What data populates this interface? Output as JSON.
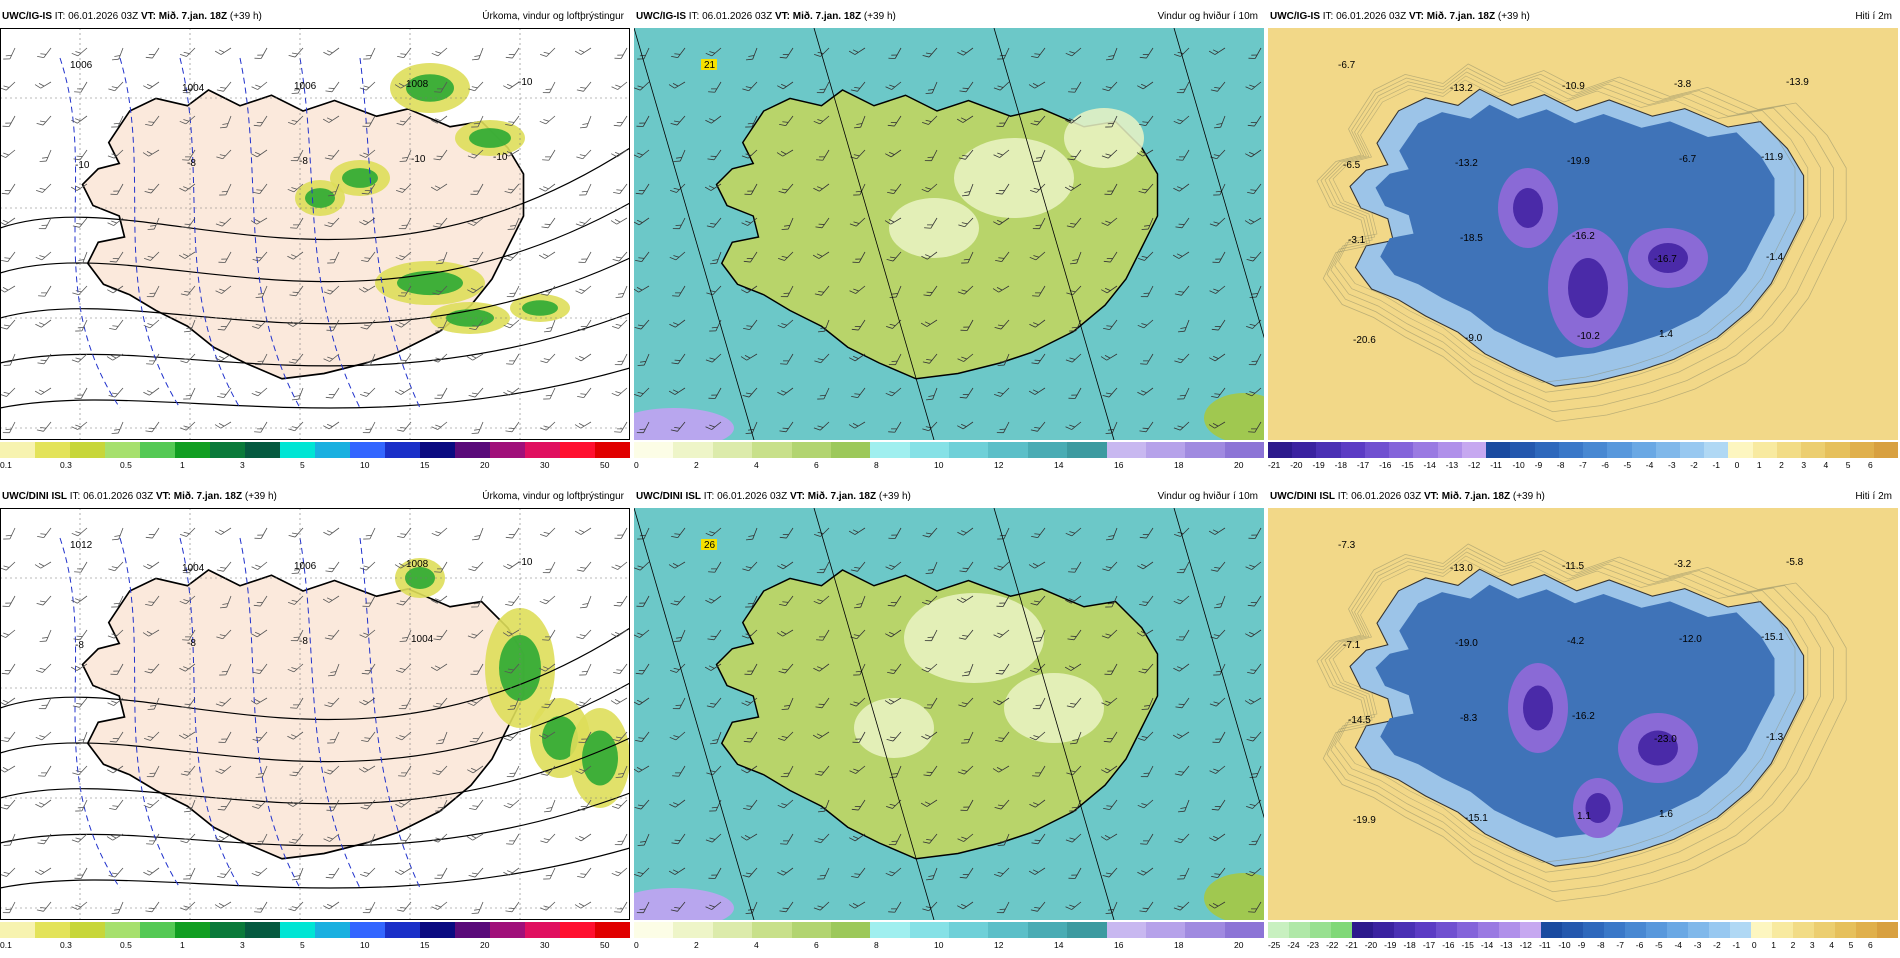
{
  "panels": [
    {
      "model": "UWC/IG-IS",
      "it_label": "IT:",
      "it_value": "06.01.2026 03Z",
      "vt_label": "VT:",
      "vt_value": "Mið. 7.jan. 18Z",
      "lead": "(+39 h)",
      "title": "Úrkoma, vindur og loftþrýstingur",
      "kind": "precip",
      "legend_colors": [
        "#f7f3b0",
        "#e3e35a",
        "#c7d63a",
        "#a6e06d",
        "#54c954",
        "#119e22",
        "#0a7a3a",
        "#055a40",
        "#00e5d4",
        "#1ab0e0",
        "#3366ff",
        "#1a2fc8",
        "#0a0a80",
        "#5a0a7a",
        "#a0107a",
        "#e01060",
        "#ff1030",
        "#e00000"
      ],
      "legend_ticks": [
        "0.1",
        "0.3",
        "0.5",
        "1",
        "3",
        "5",
        "10",
        "15",
        "20",
        "30",
        "50"
      ],
      "map_labels": [
        "1006",
        "1004",
        "1006",
        "1008",
        "-10",
        "-10",
        "-8",
        "-8",
        "-10",
        "-10"
      ]
    },
    {
      "model": "UWC/IG-IS",
      "it_label": "IT:",
      "it_value": "06.01.2026 03Z",
      "vt_label": "VT:",
      "vt_value": "Mið. 7.jan. 18Z",
      "lead": "(+39 h)",
      "title": "Vindur og hviður í 10m",
      "kind": "wind",
      "legend_colors": [
        "#fcfde6",
        "#eef5c8",
        "#dcebab",
        "#c8e08a",
        "#b2d470",
        "#9cc85a",
        "#a0efef",
        "#86e1e6",
        "#6fd0d8",
        "#5cbfc8",
        "#4aacb4",
        "#3d9aa0",
        "#c8b8f0",
        "#b6a2ea",
        "#a08ae0",
        "#8c74d6"
      ],
      "legend_ticks": [
        "0",
        "2",
        "4",
        "6",
        "8",
        "10",
        "12",
        "14",
        "16",
        "18",
        "20"
      ],
      "map_labels": [
        "21"
      ]
    },
    {
      "model": "UWC/IG-IS",
      "it_label": "IT:",
      "it_value": "06.01.2026 03Z",
      "vt_label": "VT:",
      "vt_value": "Mið. 7.jan. 18Z",
      "lead": "(+39 h)",
      "title": "Hiti í 2m",
      "kind": "temp",
      "legend_colors": [
        "#2c1a8c",
        "#3a22a0",
        "#4a30b4",
        "#5c3cc4",
        "#7050d0",
        "#8464da",
        "#9a7ae2",
        "#b090ea",
        "#c6a8f0",
        "#1a4aa0",
        "#2458ae",
        "#2e68bc",
        "#3a78c8",
        "#4888d2",
        "#5898dc",
        "#6aa8e4",
        "#80b8ea",
        "#98c8f0",
        "#b0d8f4",
        "#fdf6c0",
        "#f8eaa0",
        "#f2dc86",
        "#ecce70",
        "#e6c05c",
        "#e0b04c",
        "#d8a040"
      ],
      "legend_ticks": [
        "-21",
        "-20",
        "-19",
        "-18",
        "-17",
        "-16",
        "-15",
        "-14",
        "-13",
        "-12",
        "-11",
        "-10",
        "-9",
        "-8",
        "-7",
        "-6",
        "-5",
        "-4",
        "-3",
        "-2",
        "-1",
        "0",
        "1",
        "2",
        "3",
        "4",
        "5",
        "6"
      ],
      "map_labels": [
        "-6.7",
        "-13.2",
        "-10.9",
        "-3.8",
        "-13.9",
        "-6.5",
        "-13.2",
        "-19.9",
        "-6.7",
        "-11.9",
        "-3.1",
        "-18.5",
        "-16.2",
        "-16.7",
        "-1.4",
        "-20.6",
        "-9.0",
        "-10.2",
        "1.4"
      ]
    },
    {
      "model": "UWC/DINI ISL",
      "it_label": "IT:",
      "it_value": "06.01.2026 03Z",
      "vt_label": "VT:",
      "vt_value": "Mið. 7.jan. 18Z",
      "lead": "(+39 h)",
      "title": "Úrkoma, vindur og loftþrýstingur",
      "kind": "precip",
      "legend_colors": [
        "#f7f3b0",
        "#e3e35a",
        "#c7d63a",
        "#a6e06d",
        "#54c954",
        "#119e22",
        "#0a7a3a",
        "#055a40",
        "#00e5d4",
        "#1ab0e0",
        "#3366ff",
        "#1a2fc8",
        "#0a0a80",
        "#5a0a7a",
        "#a0107a",
        "#e01060",
        "#ff1030",
        "#e00000"
      ],
      "legend_ticks": [
        "0.1",
        "0.3",
        "0.5",
        "1",
        "3",
        "5",
        "10",
        "15",
        "20",
        "30",
        "50"
      ],
      "map_labels": [
        "1012",
        "1004",
        "1006",
        "1008",
        "-10",
        "-8",
        "-8",
        "-8",
        "1004"
      ]
    },
    {
      "model": "UWC/DINI ISL",
      "it_label": "IT:",
      "it_value": "06.01.2026 03Z",
      "vt_label": "VT:",
      "vt_value": "Mið. 7.jan. 18Z",
      "lead": "(+39 h)",
      "title": "Vindur og hviður í 10m",
      "kind": "wind",
      "legend_colors": [
        "#fcfde6",
        "#eef5c8",
        "#dcebab",
        "#c8e08a",
        "#b2d470",
        "#9cc85a",
        "#a0efef",
        "#86e1e6",
        "#6fd0d8",
        "#5cbfc8",
        "#4aacb4",
        "#3d9aa0",
        "#c8b8f0",
        "#b6a2ea",
        "#a08ae0",
        "#8c74d6"
      ],
      "legend_ticks": [
        "0",
        "2",
        "4",
        "6",
        "8",
        "10",
        "12",
        "14",
        "16",
        "18",
        "20"
      ],
      "map_labels": [
        "26"
      ]
    },
    {
      "model": "UWC/DINI ISL",
      "it_label": "IT:",
      "it_value": "06.01.2026 03Z",
      "vt_label": "VT:",
      "vt_value": "Mið. 7.jan. 18Z",
      "lead": "(+39 h)",
      "title": "Hiti í 2m",
      "kind": "temp",
      "legend_colors": [
        "#c8f0c0",
        "#b0e8a8",
        "#98e090",
        "#80d878",
        "#2c1a8c",
        "#3a22a0",
        "#4a30b4",
        "#5c3cc4",
        "#7050d0",
        "#8464da",
        "#9a7ae2",
        "#b090ea",
        "#c6a8f0",
        "#1a4aa0",
        "#2458ae",
        "#2e68bc",
        "#3a78c8",
        "#4888d2",
        "#5898dc",
        "#6aa8e4",
        "#80b8ea",
        "#98c8f0",
        "#b0d8f4",
        "#fdf6c0",
        "#f8eaa0",
        "#f2dc86",
        "#ecce70",
        "#e6c05c",
        "#e0b04c",
        "#d8a040"
      ],
      "legend_ticks": [
        "-25",
        "-24",
        "-23",
        "-22",
        "-21",
        "-20",
        "-19",
        "-18",
        "-17",
        "-16",
        "-15",
        "-14",
        "-13",
        "-12",
        "-11",
        "-10",
        "-9",
        "-8",
        "-7",
        "-6",
        "-5",
        "-4",
        "-3",
        "-2",
        "-1",
        "0",
        "1",
        "2",
        "3",
        "4",
        "5",
        "6"
      ],
      "map_labels": [
        "-7.3",
        "-13.0",
        "-11.5",
        "-3.2",
        "-5.8",
        "-7.1",
        "-19.0",
        "-4.2",
        "-12.0",
        "-15.1",
        "-14.5",
        "-8.3",
        "-16.2",
        "-23.0",
        "-1.3",
        "-19.9",
        "-15.1",
        "1.1",
        "1.6"
      ]
    }
  ],
  "colors": {
    "land_precip": "#fbe9dc",
    "sea_precip": "#ffffff",
    "wind_sea": "#6cc8c8",
    "wind_land": "#b8d46a",
    "temp_bg": "#f2d888",
    "temp_land": "#3f73b8"
  }
}
